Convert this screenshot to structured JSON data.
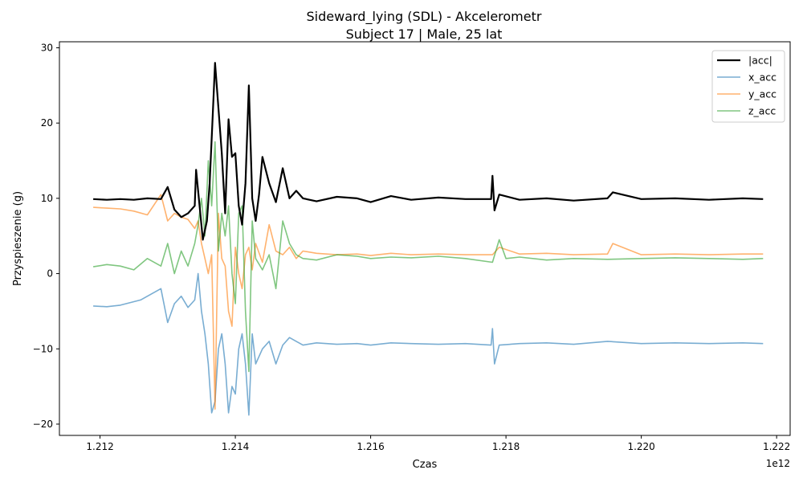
{
  "chart_data": {
    "type": "line",
    "title": "Sideward_lying (SDL) - Akcelerometr",
    "subtitle": "Subject 17 | Male, 25 lat",
    "xlabel": "Czas",
    "ylabel": "Przyspieszenie (g)",
    "x_offset_label": "1e12",
    "xlim": [
      1.2114,
      1.2222
    ],
    "ylim": [
      -21.5,
      30.8
    ],
    "x_ticks": [
      1.212,
      1.214,
      1.216,
      1.218,
      1.22,
      1.222
    ],
    "x_tick_labels": [
      "1.212",
      "1.214",
      "1.216",
      "1.218",
      "1.220",
      "1.222"
    ],
    "y_ticks": [
      -20,
      -10,
      0,
      10,
      20,
      30
    ],
    "y_tick_labels": [
      "−20",
      "−10",
      "0",
      "10",
      "20",
      "30"
    ],
    "grid": false,
    "legend_position": "top-right",
    "series": [
      {
        "name": "|acc|",
        "color": "#000000",
        "x": [
          1.2119,
          1.2121,
          1.2123,
          1.2125,
          1.2127,
          1.2129,
          1.213,
          1.2131,
          1.2132,
          1.2133,
          1.2134,
          1.21342,
          1.21352,
          1.21358,
          1.21362,
          1.21366,
          1.2137,
          1.21375,
          1.2138,
          1.21385,
          1.2139,
          1.21395,
          1.214,
          1.21405,
          1.2141,
          1.21415,
          1.2142,
          1.21425,
          1.2143,
          1.21435,
          1.2144,
          1.2145,
          1.2146,
          1.2147,
          1.2148,
          1.2149,
          1.215,
          1.2152,
          1.2155,
          1.2158,
          1.216,
          1.2163,
          1.2166,
          1.217,
          1.2174,
          1.21778,
          1.2178,
          1.21783,
          1.2179,
          1.2182,
          1.2186,
          1.219,
          1.2195,
          1.21958,
          1.22,
          1.2205,
          1.221,
          1.2215,
          1.2218
        ],
        "y": [
          9.9,
          9.8,
          9.9,
          9.8,
          10.0,
          9.9,
          11.5,
          8.5,
          7.5,
          8.0,
          9.0,
          13.8,
          4.5,
          7.0,
          12.0,
          19.8,
          28.0,
          22.0,
          16.0,
          8.0,
          20.5,
          15.5,
          16.0,
          9.0,
          6.5,
          12.0,
          25.0,
          10.0,
          7.0,
          10.5,
          15.5,
          12.0,
          9.5,
          14.0,
          10.0,
          11.0,
          10.0,
          9.6,
          10.2,
          10.0,
          9.5,
          10.3,
          9.8,
          10.1,
          9.9,
          9.9,
          13.0,
          8.4,
          10.5,
          9.8,
          10.0,
          9.7,
          10.0,
          10.8,
          9.9,
          10.0,
          9.8,
          10.0,
          9.9
        ]
      },
      {
        "name": "x_acc",
        "color": "#1f77b4",
        "x": [
          1.2119,
          1.2121,
          1.2123,
          1.2126,
          1.2129,
          1.213,
          1.2131,
          1.2132,
          1.2133,
          1.2134,
          1.21345,
          1.2135,
          1.21355,
          1.2136,
          1.21365,
          1.2137,
          1.21375,
          1.2138,
          1.21385,
          1.2139,
          1.21395,
          1.214,
          1.21405,
          1.2141,
          1.21415,
          1.2142,
          1.21425,
          1.2143,
          1.2144,
          1.2145,
          1.2146,
          1.2147,
          1.2148,
          1.2149,
          1.215,
          1.2152,
          1.2155,
          1.2158,
          1.216,
          1.2163,
          1.2166,
          1.217,
          1.2174,
          1.21778,
          1.2178,
          1.21783,
          1.2179,
          1.2182,
          1.2186,
          1.219,
          1.2195,
          1.22,
          1.2205,
          1.221,
          1.2215,
          1.2218
        ],
        "y": [
          -4.3,
          -4.4,
          -4.2,
          -3.5,
          -2.0,
          -6.5,
          -4.0,
          -3.0,
          -4.5,
          -3.5,
          0.0,
          -5.0,
          -8.0,
          -12.0,
          -18.5,
          -17.0,
          -10.0,
          -8.0,
          -12.0,
          -18.5,
          -15.0,
          -16.0,
          -10.0,
          -8.0,
          -12.0,
          -18.8,
          -8.0,
          -12.0,
          -10.0,
          -9.0,
          -12.0,
          -9.5,
          -8.5,
          -9.0,
          -9.5,
          -9.2,
          -9.4,
          -9.3,
          -9.5,
          -9.2,
          -9.3,
          -9.4,
          -9.3,
          -9.5,
          -7.3,
          -12.0,
          -9.5,
          -9.3,
          -9.2,
          -9.4,
          -9.0,
          -9.3,
          -9.2,
          -9.3,
          -9.2,
          -9.3
        ]
      },
      {
        "name": "y_acc",
        "color": "#ff7f0e",
        "x": [
          1.2119,
          1.2121,
          1.2123,
          1.2125,
          1.2127,
          1.2129,
          1.213,
          1.2131,
          1.2132,
          1.2133,
          1.2134,
          1.21345,
          1.2135,
          1.21355,
          1.2136,
          1.21365,
          1.2137,
          1.21375,
          1.2138,
          1.21385,
          1.2139,
          1.21395,
          1.214,
          1.21405,
          1.2141,
          1.21415,
          1.2142,
          1.21425,
          1.2143,
          1.2144,
          1.2145,
          1.2146,
          1.2147,
          1.2148,
          1.2149,
          1.215,
          1.2152,
          1.2155,
          1.2158,
          1.216,
          1.2163,
          1.2166,
          1.217,
          1.2174,
          1.2178,
          1.2179,
          1.2182,
          1.2186,
          1.219,
          1.2195,
          1.21958,
          1.22,
          1.2205,
          1.221,
          1.2215,
          1.2218
        ],
        "y": [
          8.8,
          8.7,
          8.6,
          8.3,
          7.8,
          10.5,
          7.0,
          8.0,
          7.5,
          7.2,
          6.0,
          7.0,
          4.0,
          2.0,
          0.0,
          2.5,
          -18.0,
          8.0,
          2.0,
          1.0,
          -5.0,
          -7.0,
          3.5,
          0.0,
          -2.0,
          2.5,
          3.5,
          0.5,
          4.0,
          1.5,
          6.5,
          3.0,
          2.5,
          3.5,
          2.0,
          3.0,
          2.7,
          2.5,
          2.6,
          2.4,
          2.7,
          2.5,
          2.6,
          2.5,
          2.5,
          3.5,
          2.6,
          2.7,
          2.5,
          2.6,
          4.0,
          2.5,
          2.6,
          2.5,
          2.6,
          2.6
        ]
      },
      {
        "name": "z_acc",
        "color": "#2ca02c",
        "x": [
          1.2119,
          1.2121,
          1.2123,
          1.2125,
          1.2127,
          1.2129,
          1.213,
          1.2131,
          1.2132,
          1.2133,
          1.2134,
          1.21345,
          1.2135,
          1.21355,
          1.2136,
          1.21365,
          1.2137,
          1.21375,
          1.2138,
          1.21385,
          1.2139,
          1.21395,
          1.214,
          1.21405,
          1.2141,
          1.21415,
          1.2142,
          1.21425,
          1.2143,
          1.2144,
          1.2145,
          1.2146,
          1.2147,
          1.2148,
          1.2149,
          1.215,
          1.2152,
          1.2155,
          1.2158,
          1.216,
          1.2163,
          1.2166,
          1.217,
          1.2174,
          1.2178,
          1.2179,
          1.218,
          1.2182,
          1.2186,
          1.219,
          1.2195,
          1.22,
          1.2205,
          1.221,
          1.2215,
          1.2218
        ],
        "y": [
          0.9,
          1.2,
          1.0,
          0.5,
          2.0,
          1.0,
          4.0,
          0.0,
          3.0,
          1.0,
          4.0,
          6.5,
          10.0,
          5.0,
          15.0,
          9.0,
          17.5,
          3.0,
          8.0,
          5.0,
          9.0,
          0.0,
          -4.0,
          8.0,
          9.0,
          -5.0,
          -13.0,
          7.0,
          2.0,
          0.5,
          2.5,
          -2.0,
          7.0,
          4.0,
          2.5,
          2.0,
          1.8,
          2.5,
          2.3,
          2.0,
          2.2,
          2.1,
          2.3,
          2.0,
          1.5,
          4.5,
          2.0,
          2.2,
          1.8,
          2.0,
          1.9,
          2.0,
          2.1,
          2.0,
          1.9,
          2.0
        ]
      }
    ]
  }
}
